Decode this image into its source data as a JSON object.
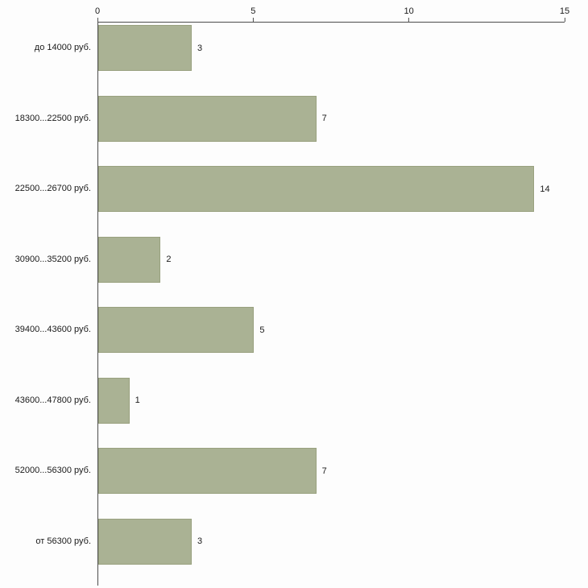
{
  "chart_data": {
    "type": "bar",
    "orientation": "horizontal",
    "title": "",
    "xlabel": "",
    "ylabel": "",
    "categories": [
      "до 14000 руб.",
      "18300...22500 руб.",
      "22500...26700 руб.",
      "30900...35200 руб.",
      "39400...43600 руб.",
      "43600...47800 руб.",
      "52000...56300 руб.",
      "от 56300 руб."
    ],
    "values": [
      3,
      7,
      14,
      2,
      5,
      1,
      7,
      3
    ],
    "xlim": [
      0,
      15
    ],
    "x_ticks": [
      0,
      5,
      10,
      15
    ],
    "grid": false,
    "legend": "none",
    "axis_position": "top",
    "colors": {
      "bar_fill": "#aab294",
      "bar_border": "#99a17f",
      "axis": "#4d4d4d",
      "text": "#1a1a1a",
      "background": "#fdfdfd"
    }
  }
}
